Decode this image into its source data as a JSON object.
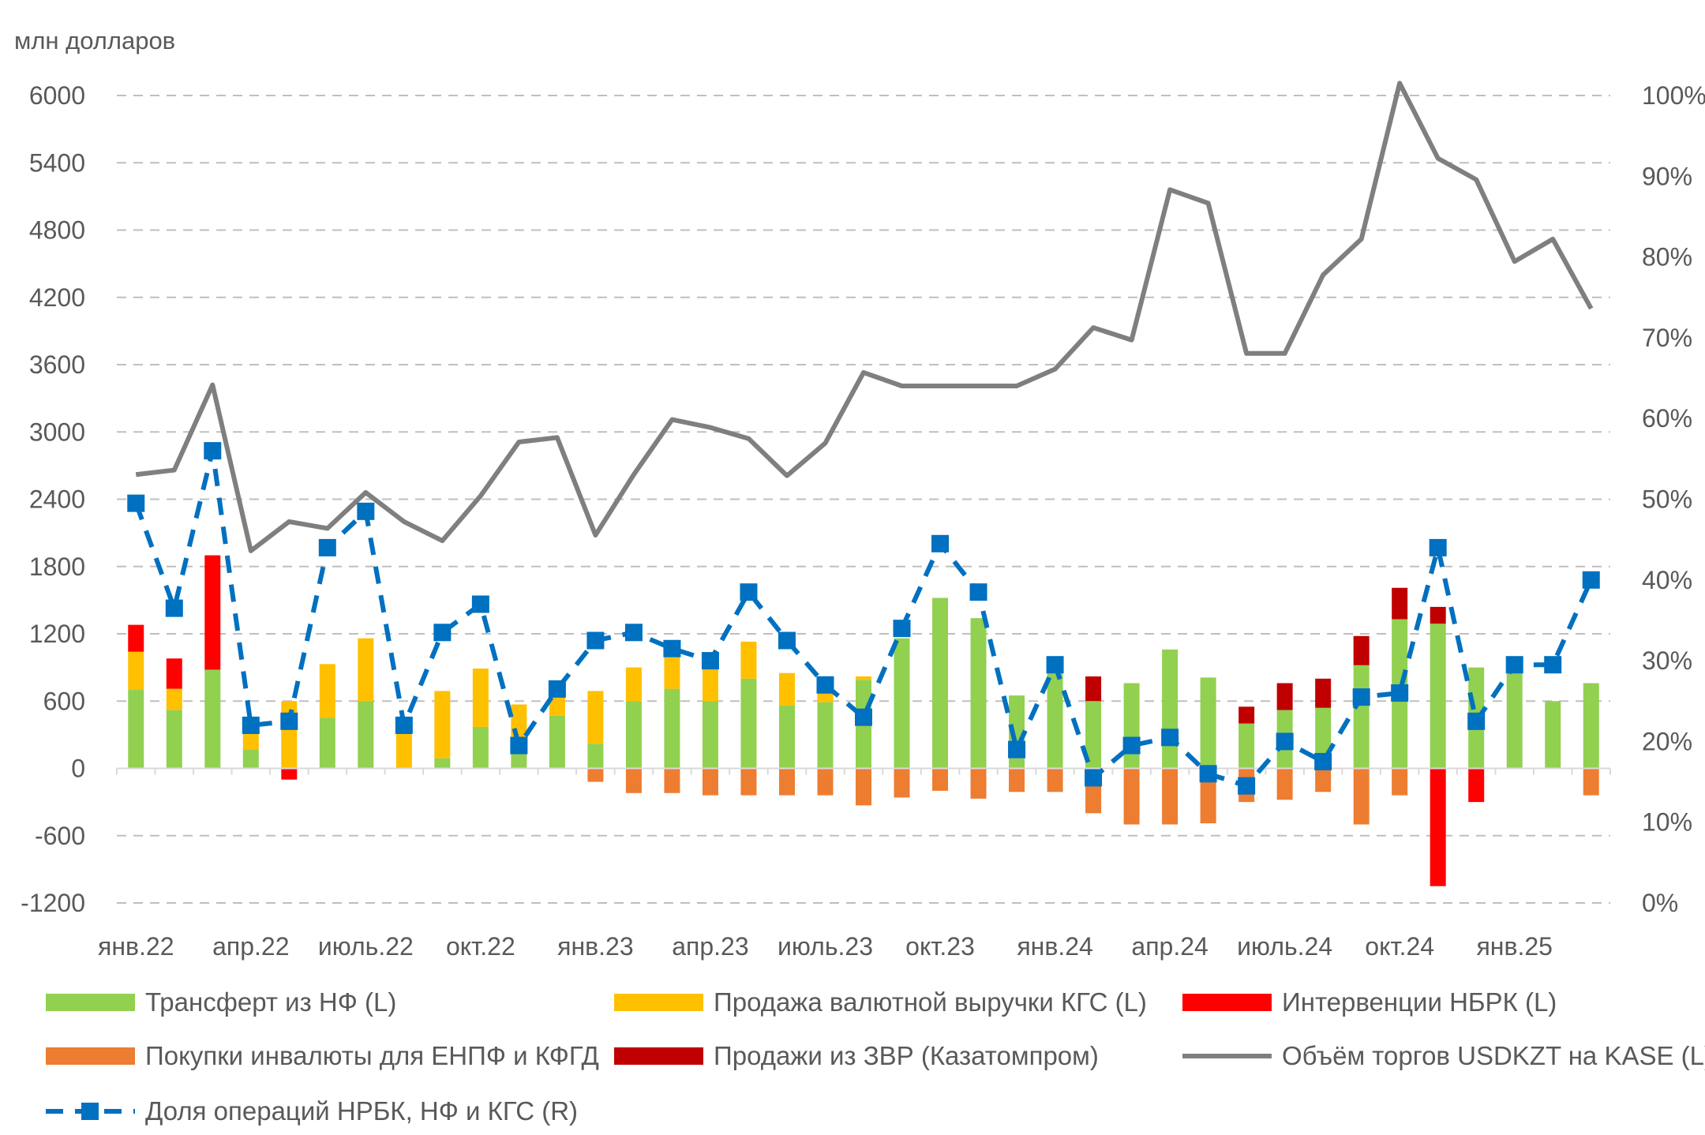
{
  "chart_data": {
    "type": "bar",
    "ylabel": "млн долларов",
    "ylim_left": [
      -1200,
      6000
    ],
    "ylim_right": [
      0,
      100
    ],
    "left_ticks": [
      "6000",
      "5400",
      "4800",
      "4200",
      "3600",
      "3000",
      "2400",
      "1800",
      "1200",
      "600",
      "0",
      "-600",
      "-1200"
    ],
    "right_ticks": [
      "100%",
      "90%",
      "80%",
      "70%",
      "60%",
      "50%",
      "40%",
      "30%",
      "20%",
      "10%",
      "0%"
    ],
    "x_tick_labels": [
      {
        "index": 0,
        "label": "янв.22"
      },
      {
        "index": 3,
        "label": "апр.22"
      },
      {
        "index": 6,
        "label": "июль.22"
      },
      {
        "index": 9,
        "label": "окт.22"
      },
      {
        "index": 12,
        "label": "янв.23"
      },
      {
        "index": 15,
        "label": "апр.23"
      },
      {
        "index": 18,
        "label": "июль.23"
      },
      {
        "index": 21,
        "label": "окт.23"
      },
      {
        "index": 24,
        "label": "янв.24"
      },
      {
        "index": 27,
        "label": "апр.24"
      },
      {
        "index": 30,
        "label": "июль.24"
      },
      {
        "index": 33,
        "label": "окт.24"
      },
      {
        "index": 36,
        "label": "янв.25"
      }
    ],
    "n_periods": 39,
    "stacked_series_positive": [
      {
        "name": "Трансферт из НФ (L)",
        "color": "#92D050",
        "values": [
          700,
          520,
          880,
          170,
          0,
          450,
          600,
          0,
          90,
          370,
          130,
          470,
          220,
          600,
          710,
          600,
          800,
          560,
          590,
          790,
          1160,
          1520,
          1340,
          650,
          900,
          600,
          760,
          1060,
          810,
          400,
          520,
          540,
          920,
          1330,
          1290,
          900,
          870,
          600,
          760
        ]
      },
      {
        "name": "Продажа валютной выручки КГС (L)",
        "color": "#FFC000",
        "values": [
          340,
          190,
          0,
          200,
          600,
          480,
          560,
          340,
          600,
          520,
          440,
          260,
          470,
          300,
          280,
          310,
          330,
          290,
          150,
          30,
          0,
          0,
          0,
          0,
          0,
          0,
          0,
          0,
          0,
          0,
          0,
          0,
          0,
          0,
          0,
          0,
          0,
          0,
          0
        ]
      },
      {
        "name": "Интервенции НБРК (L)",
        "color": "#FF0000",
        "values": [
          240,
          270,
          1020,
          0,
          0,
          0,
          0,
          0,
          0,
          0,
          0,
          0,
          0,
          0,
          0,
          0,
          0,
          0,
          0,
          0,
          0,
          0,
          0,
          0,
          0,
          0,
          0,
          0,
          0,
          0,
          0,
          0,
          0,
          0,
          0,
          0,
          0,
          0,
          0
        ]
      },
      {
        "name": "Продажи из ЗВР (Казатомпром)",
        "color": "#C00000",
        "values": [
          0,
          0,
          0,
          0,
          0,
          0,
          0,
          0,
          0,
          0,
          0,
          0,
          0,
          0,
          0,
          0,
          0,
          0,
          0,
          0,
          0,
          0,
          0,
          0,
          0,
          220,
          0,
          0,
          0,
          150,
          240,
          260,
          260,
          280,
          150,
          0,
          0,
          0,
          0
        ]
      }
    ],
    "stacked_series_negative": [
      {
        "name": "Покупки инвалюты для ЕНПФ и КФГД",
        "color": "#ED7D31",
        "values": [
          0,
          0,
          0,
          0,
          0,
          0,
          0,
          0,
          0,
          0,
          0,
          0,
          -120,
          -220,
          -220,
          -240,
          -240,
          -240,
          -240,
          -330,
          -260,
          -200,
          -270,
          -210,
          -210,
          -400,
          -500,
          -500,
          -490,
          -300,
          -280,
          -210,
          -500,
          -240,
          0,
          0,
          0,
          0,
          -240
        ]
      },
      {
        "name": "Интервенции НБРК (L)",
        "color": "#FF0000",
        "values": [
          0,
          0,
          0,
          0,
          -100,
          0,
          0,
          0,
          0,
          0,
          0,
          0,
          0,
          0,
          0,
          0,
          0,
          0,
          0,
          0,
          0,
          0,
          0,
          0,
          0,
          0,
          0,
          0,
          0,
          0,
          0,
          0,
          0,
          0,
          -1050,
          -300,
          0,
          0,
          0
        ]
      }
    ],
    "line_series": [
      {
        "name": "Объём торгов USDKZT на KASE (L)",
        "color": "#7F7F7F",
        "axis": "left",
        "values": [
          2620,
          2660,
          3420,
          1940,
          2200,
          2140,
          2460,
          2200,
          2030,
          2430,
          2910,
          2950,
          2080,
          2620,
          3110,
          3040,
          2940,
          2610,
          2900,
          3530,
          3410,
          3410,
          3410,
          3410,
          3560,
          3930,
          3820,
          5160,
          5040,
          3700,
          3700,
          4400,
          4720,
          6110,
          5440,
          5250,
          4520,
          4720,
          4100
        ]
      },
      {
        "name": "Доля операций НРБК, НФ и КГС (R)",
        "color": "#0070C0",
        "axis": "right",
        "values": [
          49.5,
          36.5,
          56,
          22,
          22.5,
          44,
          48.5,
          22,
          33.5,
          37,
          19.5,
          26.5,
          32.5,
          33.5,
          31.5,
          30,
          38.5,
          32.5,
          27,
          23,
          34,
          44.5,
          38.5,
          19,
          29.5,
          15.5,
          19.5,
          20.5,
          16,
          14.5,
          20,
          17.5,
          25.5,
          26,
          44,
          22.5,
          29.5,
          29.5,
          40
        ]
      }
    ]
  },
  "legend": [
    {
      "label": "Трансферт из НФ (L)",
      "color": "#92D050",
      "kind": "bar"
    },
    {
      "label": "Продажа валютной выручки КГС (L)",
      "color": "#FFC000",
      "kind": "bar"
    },
    {
      "label": "Интервенции НБРК (L)",
      "color": "#FF0000",
      "kind": "bar"
    },
    {
      "label": "Покупки инвалюты для ЕНПФ и КФГД",
      "color": "#ED7D31",
      "kind": "bar"
    },
    {
      "label": "Продажи из ЗВР (Казатомпром)",
      "color": "#C00000",
      "kind": "bar"
    },
    {
      "label": "Объём торгов USDKZT на KASE (L)",
      "color": "#7F7F7F",
      "kind": "line"
    },
    {
      "label": "Доля операций НРБК, НФ и КГС (R)",
      "color": "#0070C0",
      "kind": "dashed-line-marker"
    }
  ],
  "colors": {
    "gridline": "#BFBFBF",
    "axis_text": "#595959",
    "axis_line": "#D9D9D9"
  }
}
